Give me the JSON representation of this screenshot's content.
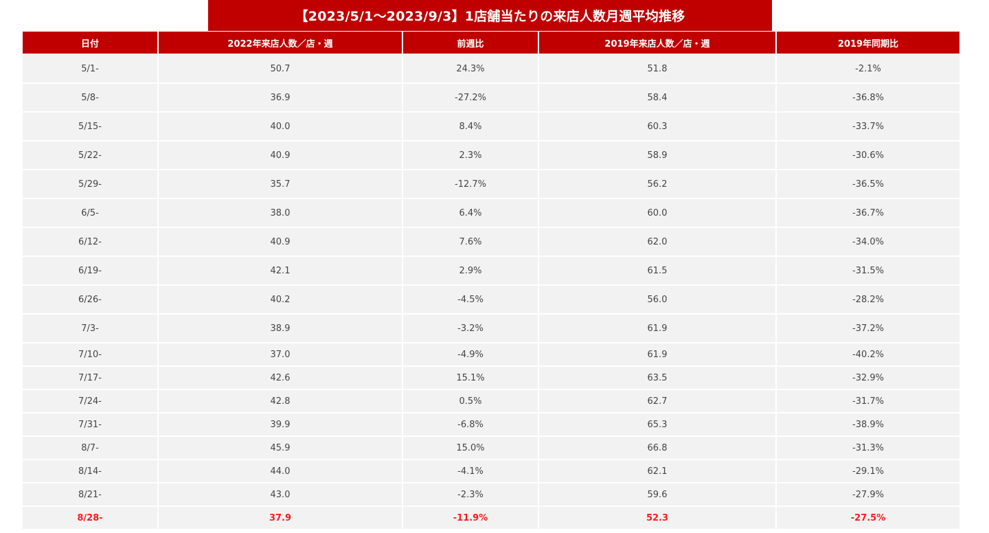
{
  "title": "【2023/5/1～2023/9/3】1店舗当たりの来店人数月週平均推移",
  "headers": [
    "日付",
    "2022年来店人数／店・週",
    "前週比",
    "2019年来店人数／店・週",
    "2019年同期比"
  ],
  "rows": [
    [
      "5/1-",
      "50.7",
      "24.3%",
      "51.8",
      "-2.1%"
    ],
    [
      "5/8-",
      "36.9",
      "-27.2%",
      "58.4",
      "-36.8%"
    ],
    [
      "5/15-",
      "40.0",
      "8.4%",
      "60.3",
      "-33.7%"
    ],
    [
      "5/22-",
      "40.9",
      "2.3%",
      "58.9",
      "-30.6%"
    ],
    [
      "5/29-",
      "35.7",
      "-12.7%",
      "56.2",
      "-36.5%"
    ],
    [
      "6/5-",
      "38.0",
      "6.4%",
      "60.0",
      "-36.7%"
    ],
    [
      "6/12-",
      "40.9",
      "7.6%",
      "62.0",
      "-34.0%"
    ],
    [
      "6/19-",
      "42.1",
      "2.9%",
      "61.5",
      "-31.5%"
    ],
    [
      "6/26-",
      "40.2",
      "-4.5%",
      "56.0",
      "-28.2%"
    ],
    [
      "7/3-",
      "38.9",
      "-3.2%",
      "61.9",
      "-37.2%"
    ],
    [
      "7/10-",
      "37.0",
      "-4.9%",
      "61.9",
      "-40.2%"
    ],
    [
      "7/17-",
      "42.6",
      "15.1%",
      "63.5",
      "-32.9%"
    ],
    [
      "7/24-",
      "42.8",
      "0.5%",
      "62.7",
      "-31.7%"
    ],
    [
      "7/31-",
      "39.9",
      "-6.8%",
      "65.3",
      "-38.9%"
    ],
    [
      "8/7-",
      "45.9",
      "15.0%",
      "66.8",
      "-31.3%"
    ],
    [
      "8/14-",
      "44.0",
      "-4.1%",
      "62.1",
      "-29.1%"
    ],
    [
      "8/21-",
      "43.0",
      "-2.3%",
      "59.6",
      "-27.9%"
    ],
    [
      "8/28-",
      "37.9",
      "-11.9%",
      "52.3",
      "-27.5%"
    ]
  ],
  "colors": {
    "header_bg": "#c00000",
    "cell_bg": "#f2f2f2",
    "highlight_text": "#ff1a1a"
  }
}
